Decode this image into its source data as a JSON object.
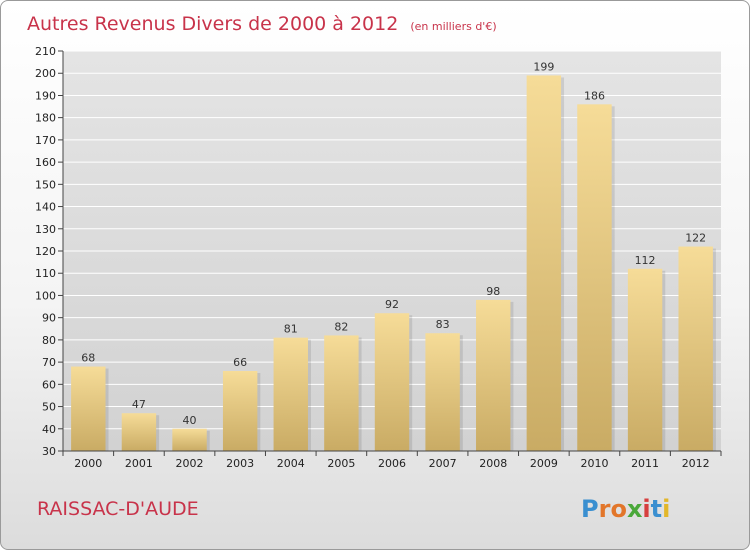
{
  "chart_data": {
    "type": "bar",
    "title": "Autres Revenus Divers de 2000 à 2012",
    "subtitle": "(en milliers d'€)",
    "categories": [
      "2000",
      "2001",
      "2002",
      "2003",
      "2004",
      "2005",
      "2006",
      "2007",
      "2008",
      "2009",
      "2010",
      "2011",
      "2012"
    ],
    "values": [
      68,
      47,
      40,
      66,
      81,
      82,
      92,
      83,
      98,
      199,
      186,
      112,
      122
    ],
    "ylim": [
      30,
      210
    ],
    "yticks": [
      30,
      40,
      50,
      60,
      70,
      80,
      90,
      100,
      110,
      120,
      130,
      140,
      150,
      160,
      170,
      180,
      190,
      200,
      210
    ],
    "grid": true,
    "legend": "none",
    "bar_color_light": "#f6dc98",
    "bar_color_dark": "#c9ab64"
  },
  "footer": {
    "commune": "RAISSAC-D'AUDE",
    "logo": "Proxiti"
  },
  "colors": {
    "title": "#c8334a",
    "grid": "#ffffff"
  }
}
